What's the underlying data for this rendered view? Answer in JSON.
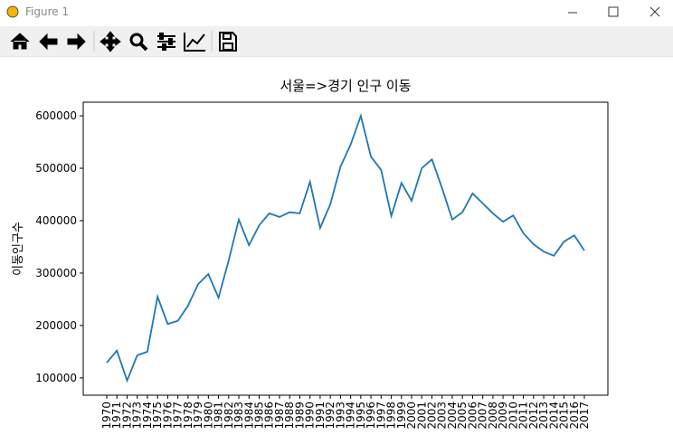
{
  "window": {
    "title": "Figure 1"
  },
  "chart_data": {
    "type": "line",
    "title": "서울=>경기 인구 이동",
    "y_label": "이동인구수",
    "categories": [
      "1970",
      "1971",
      "1972",
      "1973",
      "1974",
      "1975",
      "1976",
      "1977",
      "1978",
      "1979",
      "1980",
      "1981",
      "1982",
      "1983",
      "1984",
      "1985",
      "1986",
      "1987",
      "1988",
      "1989",
      "1990",
      "1991",
      "1992",
      "1993",
      "1994",
      "1995",
      "1996",
      "1997",
      "1998",
      "1999",
      "2000",
      "2001",
      "2002",
      "2003",
      "2004",
      "2005",
      "2006",
      "2007",
      "2008",
      "2009",
      "2010",
      "2011",
      "2012",
      "2013",
      "2014",
      "2015",
      "2016",
      "2017"
    ],
    "values": [
      129000,
      152000,
      95000,
      143000,
      150000,
      255000,
      203000,
      209000,
      238000,
      279000,
      298000,
      253000,
      324000,
      402000,
      353000,
      391000,
      414000,
      407000,
      416000,
      414000,
      474000,
      386000,
      431000,
      503000,
      545000,
      600000,
      522000,
      497000,
      409000,
      472000,
      438000,
      500000,
      517000,
      462000,
      402000,
      416000,
      452000,
      433000,
      414000,
      398000,
      410000,
      376000,
      355000,
      341000,
      333000,
      360000,
      372000,
      343000
    ],
    "color": "#1f77b4",
    "ylim": [
      67000,
      626000
    ],
    "yticks": [
      100000,
      200000,
      300000,
      400000,
      500000,
      600000
    ]
  }
}
